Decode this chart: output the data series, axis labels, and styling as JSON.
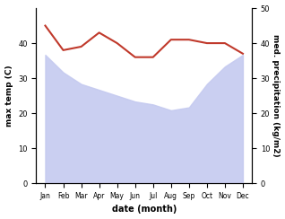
{
  "months": [
    "Jan",
    "Feb",
    "Mar",
    "Apr",
    "May",
    "Jun",
    "Jul",
    "Aug",
    "Sep",
    "Oct",
    "Nov",
    "Dec"
  ],
  "month_positions": [
    1,
    2,
    3,
    4,
    5,
    6,
    7,
    8,
    9,
    10,
    11,
    12
  ],
  "temperature": [
    45,
    38,
    39,
    43,
    40,
    36,
    36,
    41,
    41,
    40,
    40,
    37
  ],
  "precipitation": [
    220,
    190,
    170,
    160,
    150,
    140,
    135,
    125,
    130,
    170,
    200,
    220
  ],
  "temp_color": "#c0392b",
  "precip_fill_color": "#c5caf0",
  "temp_ylim": [
    0,
    50
  ],
  "precip_ylim": [
    0,
    300
  ],
  "right_yticks": [
    0,
    10,
    20,
    30,
    40,
    50
  ],
  "left_yticks": [
    0,
    10,
    20,
    30,
    40
  ],
  "xlabel": "date (month)",
  "ylabel_left": "max temp (C)",
  "ylabel_right": "med. precipitation (kg/m2)",
  "fig_width": 3.18,
  "fig_height": 2.44,
  "dpi": 100,
  "bg_color": "#ffffff"
}
